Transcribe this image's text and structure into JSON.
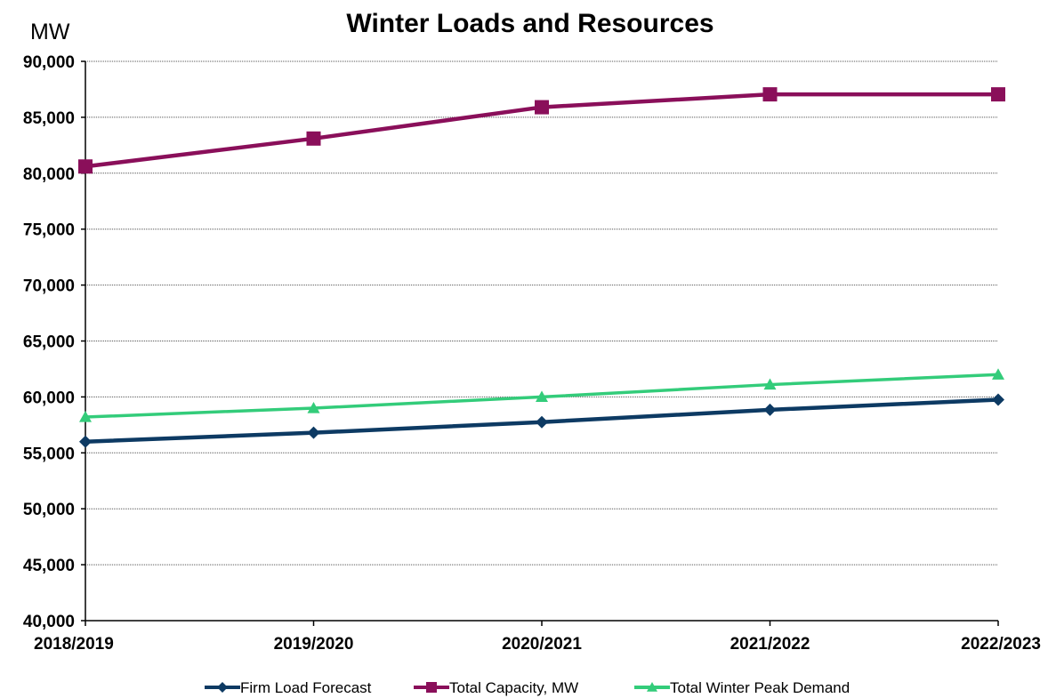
{
  "chart_data": {
    "type": "line",
    "title": "Winter Loads and Resources",
    "y_unit_label": "MW",
    "xlabel": "",
    "ylabel": "",
    "categories": [
      "2018/2019",
      "2019/2020",
      "2020/2021",
      "2021/2022",
      "2022/2023"
    ],
    "ylim": [
      40000,
      90000
    ],
    "yticks": [
      40000,
      45000,
      50000,
      55000,
      60000,
      65000,
      70000,
      75000,
      80000,
      85000,
      90000
    ],
    "ytick_labels": [
      "40,000",
      "45,000",
      "50,000",
      "55,000",
      "60,000",
      "65,000",
      "70,000",
      "75,000",
      "80,000",
      "85,000",
      "90,000"
    ],
    "grid": true,
    "legend_position": "bottom",
    "series": [
      {
        "name": "Firm Load Forecast",
        "color": "#0d3a63",
        "marker": "diamond",
        "values": [
          56000,
          56800,
          57750,
          58850,
          59750
        ]
      },
      {
        "name": "Total Capacity, MW",
        "color": "#8a0f5a",
        "marker": "square",
        "values": [
          80600,
          83100,
          85900,
          87050,
          87050
        ]
      },
      {
        "name": "Total Winter Peak Demand",
        "color": "#33cc7a",
        "marker": "triangle",
        "values": [
          58200,
          59000,
          60000,
          61100,
          62000
        ]
      }
    ]
  }
}
